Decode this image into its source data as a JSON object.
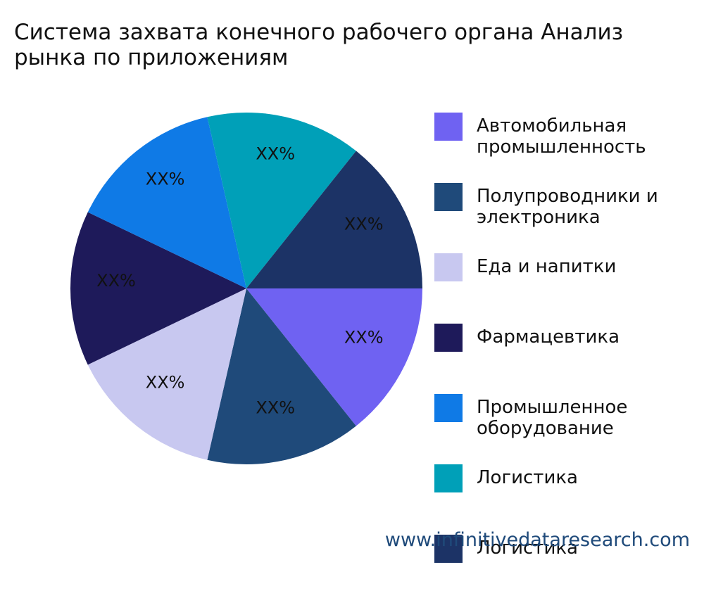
{
  "chart_data": {
    "type": "pie",
    "title": "Система захвата конечного рабочего органа Анализ рынка по приложениям",
    "categories": [
      "Автомобильная промышленность",
      "Полупроводники и электроника",
      "Еда и напитки",
      "Фармацевтика",
      "Промышленное оборудование",
      "Логистика",
      "Логистика"
    ],
    "values": [
      14.3,
      14.3,
      14.3,
      14.3,
      14.3,
      14.3,
      14.3
    ],
    "value_labels": [
      "XX%",
      "XX%",
      "XX%",
      "XX%",
      "XX%",
      "XX%",
      "XX%"
    ],
    "colors": [
      "#6f62f2",
      "#1f4a7a",
      "#c8c8f0",
      "#1e1a5a",
      "#0f7ae6",
      "#00a0b8",
      "#1c3366"
    ],
    "watermark": "www.infinitivedataresearch.com"
  }
}
